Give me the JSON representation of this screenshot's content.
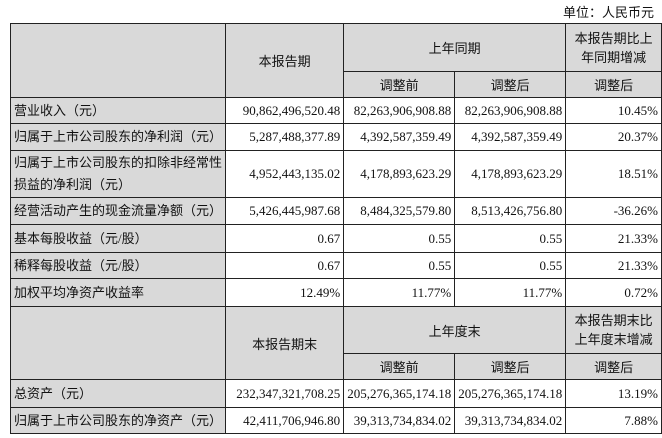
{
  "unit_label": "单位：人民币元",
  "header1": {
    "current": "本报告期",
    "prior": "上年同期",
    "change": "本报告期比上年同期增减",
    "before_adj": "调整前",
    "after_adj": "调整后",
    "change_sub": "调整后"
  },
  "rows1": [
    {
      "label": "营业收入（元）",
      "current": "90,862,496,520.48",
      "before": "82,263,906,908.88",
      "after": "82,263,906,908.88",
      "change": "10.45%"
    },
    {
      "label": "归属于上市公司股东的净利润（元）",
      "current": "5,287,488,377.89",
      "before": "4,392,587,359.49",
      "after": "4,392,587,359.49",
      "change": "20.37%"
    },
    {
      "label": "归属于上市公司股东的扣除非经常性损益的净利润（元）",
      "current": "4,952,443,135.02",
      "before": "4,178,893,623.29",
      "after": "4,178,893,623.29",
      "change": "18.51%"
    },
    {
      "label": "经营活动产生的现金流量净额（元）",
      "current": "5,426,445,987.68",
      "before": "8,484,325,579.80",
      "after": "8,513,426,756.80",
      "change": "-36.26%"
    },
    {
      "label": "基本每股收益（元/股）",
      "current": "0.67",
      "before": "0.55",
      "after": "0.55",
      "change": "21.33%"
    },
    {
      "label": "稀释每股收益（元/股）",
      "current": "0.67",
      "before": "0.55",
      "after": "0.55",
      "change": "21.33%"
    },
    {
      "label": "加权平均净资产收益率",
      "current": "12.49%",
      "before": "11.77%",
      "after": "11.77%",
      "change": "0.72%"
    }
  ],
  "header2": {
    "current": "本报告期末",
    "prior": "上年度末",
    "change": "本报告期末比上年度末增减",
    "before_adj": "调整前",
    "after_adj": "调整后",
    "change_sub": "调整后"
  },
  "rows2": [
    {
      "label": "总资产（元）",
      "current": "232,347,321,708.25",
      "before": "205,276,365,174.18",
      "after": "205,276,365,174.18",
      "change": "13.19%"
    },
    {
      "label": "归属于上市公司股东的净资产（元）",
      "current": "42,411,706,946.80",
      "before": "39,313,734,834.02",
      "after": "39,313,734,834.02",
      "change": "7.88%"
    }
  ]
}
